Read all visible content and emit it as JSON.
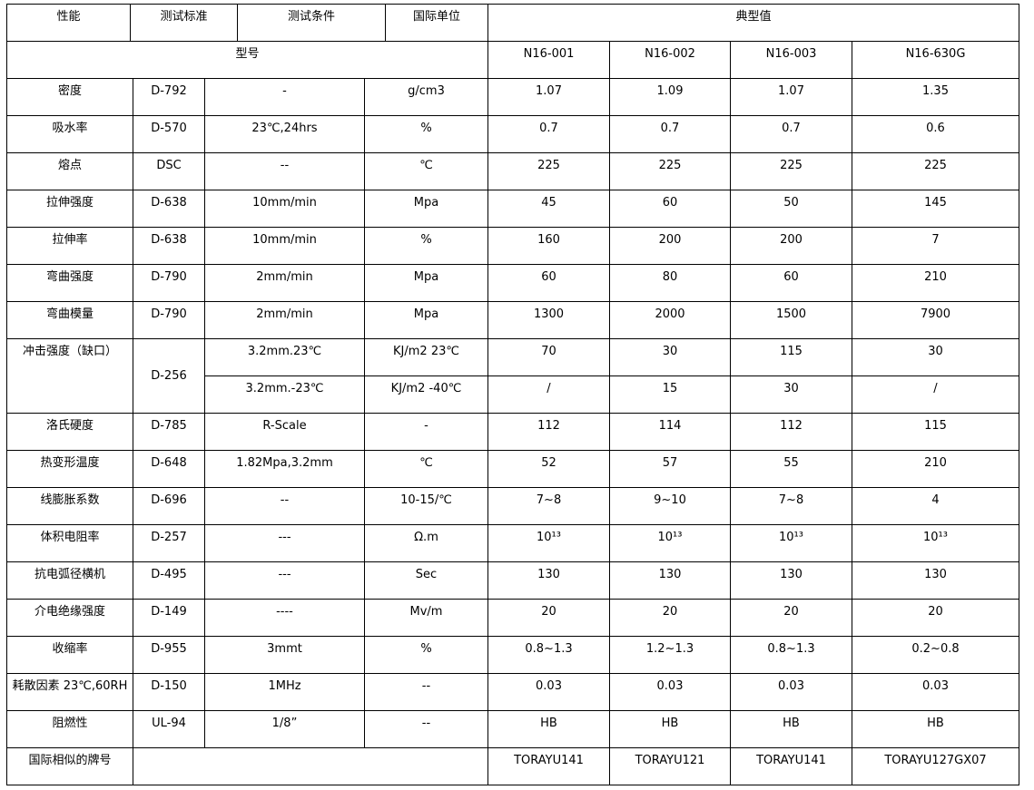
{
  "header": {
    "property": "性能",
    "standard": "测试标准",
    "condition": "测试条件",
    "unit": "国际单位",
    "typical": "典型值"
  },
  "model_row": {
    "label": "型号",
    "models": [
      "N16-001",
      "N16-002",
      "N16-003",
      "N16-630G"
    ]
  },
  "rows": [
    {
      "property": "密度",
      "standard": "D-792",
      "condition": "-",
      "unit": "g/cm3",
      "values": [
        "1.07",
        "1.09",
        "1.07",
        "1.35"
      ]
    },
    {
      "property": "吸水率",
      "standard": "D-570",
      "condition": "23℃,24hrs",
      "unit": "%",
      "values": [
        "0.7",
        "0.7",
        "0.7",
        "0.6"
      ]
    },
    {
      "property": "熔点",
      "standard": "DSC",
      "condition": "--",
      "unit": "℃",
      "values": [
        "225",
        "225",
        "225",
        "225"
      ]
    },
    {
      "property": "拉伸强度",
      "standard": "D-638",
      "condition": "10mm/min",
      "unit": "Mpa",
      "values": [
        "45",
        "60",
        "50",
        "145"
      ]
    },
    {
      "property": "拉伸率",
      "standard": "D-638",
      "condition": "10mm/min",
      "unit": "%",
      "values": [
        "160",
        "200",
        "200",
        "7"
      ]
    },
    {
      "property": "弯曲强度",
      "standard": "D-790",
      "condition": "2mm/min",
      "unit": "Mpa",
      "values": [
        "60",
        "80",
        "60",
        "210"
      ]
    },
    {
      "property": "弯曲模量",
      "standard": "D-790",
      "condition": "2mm/min",
      "unit": "Mpa",
      "values": [
        "1300",
        "2000",
        "1500",
        "7900"
      ]
    },
    {
      "property": "冲击强度（缺口）",
      "standard": "D-256",
      "subrows": [
        {
          "condition": "3.2mm.23℃",
          "unit": "KJ/m2 23℃",
          "values": [
            "70",
            "30",
            "115",
            "30"
          ]
        },
        {
          "condition": "3.2mm.-23℃",
          "unit": "KJ/m2 -40℃",
          "values": [
            "/",
            "15",
            "30",
            "/"
          ]
        }
      ]
    },
    {
      "property": "洛氏硬度",
      "standard": "D-785",
      "condition": "R-Scale",
      "unit": "-",
      "values": [
        "112",
        "114",
        "112",
        "115"
      ]
    },
    {
      "property": "热变形温度",
      "standard": "D-648",
      "condition": "1.82Mpa,3.2mm",
      "unit": "℃",
      "values": [
        "52",
        "57",
        "55",
        "210"
      ]
    },
    {
      "property": "线膨胀系数",
      "standard": "D-696",
      "condition": "--",
      "unit": "10-15/℃",
      "values": [
        "7~8",
        "9~10",
        "7~8",
        "4"
      ]
    },
    {
      "property": "体积电阻率",
      "standard": "D-257",
      "condition": "---",
      "unit": "Ω.m",
      "values": [
        "10¹³",
        "10¹³",
        "10¹³",
        "10¹³"
      ]
    },
    {
      "property": "抗电弧径横机",
      "standard": "D-495",
      "condition": "---",
      "unit": "Sec",
      "values": [
        "130",
        "130",
        "130",
        "130"
      ]
    },
    {
      "property": "介电绝缘强度",
      "standard": "D-149",
      "condition": "----",
      "unit": "Mv/m",
      "values": [
        "20",
        "20",
        "20",
        "20"
      ]
    },
    {
      "property": "收缩率",
      "standard": "D-955",
      "condition": "3mmt",
      "unit": "%",
      "values": [
        "0.8~1.3",
        "1.2~1.3",
        "0.8~1.3",
        "0.2~0.8"
      ]
    },
    {
      "property": "耗散因素 23℃,60RH",
      "standard": "D-150",
      "condition": "1MHz",
      "unit": "--",
      "values": [
        "0.03",
        "0.03",
        "0.03",
        "0.03"
      ]
    },
    {
      "property": "阻燃性",
      "standard": "UL-94",
      "condition": "1/8”",
      "unit": "--",
      "values": [
        "HB",
        "HB",
        "HB",
        "HB"
      ]
    },
    {
      "property": "国际相似的牌号",
      "values": [
        "TORAYU141",
        "TORAYU121",
        "TORAYU141",
        "TORAYU127GX07"
      ]
    }
  ]
}
